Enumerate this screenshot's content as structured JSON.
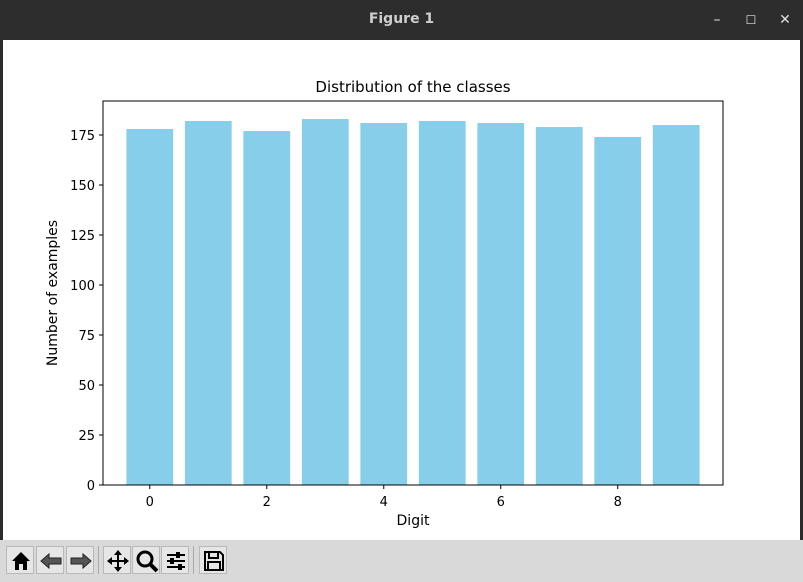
{
  "window": {
    "title": "Figure 1",
    "minimize_glyph": "–",
    "maximize_glyph": "☐",
    "close_glyph": "✕"
  },
  "toolbar": {
    "buttons": [
      "home-icon",
      "back-icon",
      "forward-icon",
      "pan-icon",
      "zoom-icon",
      "configure-subplots-icon",
      "save-icon"
    ]
  },
  "chart_data": {
    "type": "bar",
    "title": "Distribution of the classes",
    "xlabel": "Digit",
    "ylabel": "Number of examples",
    "categories": [
      0,
      1,
      2,
      3,
      4,
      5,
      6,
      7,
      8,
      9
    ],
    "values": [
      178,
      182,
      177,
      183,
      181,
      182,
      181,
      179,
      174,
      180
    ],
    "xlim": [
      -0.8,
      9.8
    ],
    "ylim": [
      0,
      192
    ],
    "xticks": [
      0,
      2,
      4,
      6,
      8
    ],
    "yticks": [
      0,
      25,
      50,
      75,
      100,
      125,
      150,
      175
    ],
    "bar_color": "#87ceeb",
    "grid": false
  }
}
